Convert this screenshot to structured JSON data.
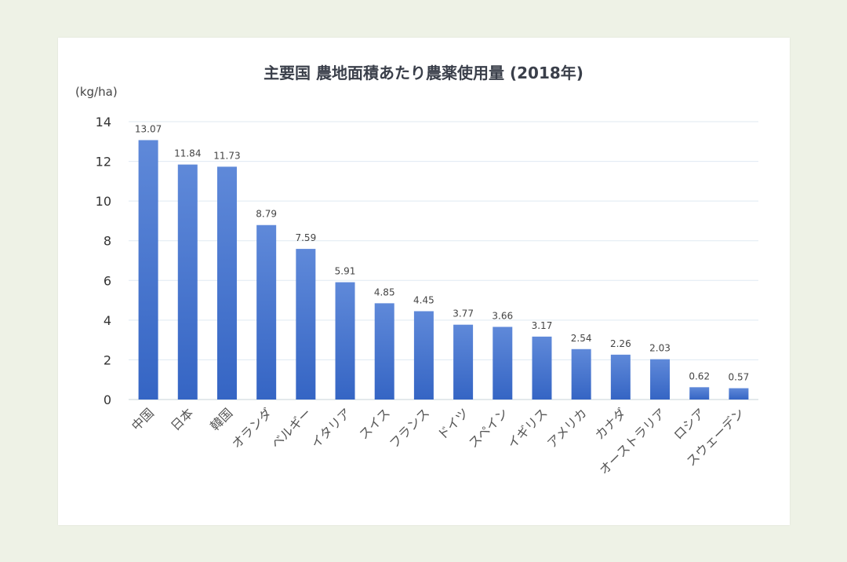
{
  "chart_data": {
    "type": "bar",
    "title": "主要国 農地面積あたり農薬使用量 (2018年)",
    "unit_label": "(kg/ha)",
    "categories": [
      "中国",
      "日本",
      "韓国",
      "オランダ",
      "ベルギー",
      "イタリア",
      "スイス",
      "フランス",
      "ドイツ",
      "スペイン",
      "イギリス",
      "アメリカ",
      "カナダ",
      "オーストラリア",
      "ロシア",
      "スウェーデン"
    ],
    "values": [
      13.07,
      11.84,
      11.73,
      8.79,
      7.59,
      5.91,
      4.85,
      4.45,
      3.77,
      3.66,
      3.17,
      2.54,
      2.26,
      2.03,
      0.62,
      0.57
    ],
    "value_labels": [
      "13.07",
      "11.84",
      "11.73",
      "8.79",
      "7.59",
      "5.91",
      "4.85",
      "4.45",
      "3.77",
      "3.66",
      "3.17",
      "2.54",
      "2.26",
      "2.03",
      "0.62",
      "0.57"
    ],
    "ylim": [
      0,
      14
    ],
    "yticks": [
      "0",
      "2",
      "4",
      "6",
      "8",
      "10",
      "12",
      "14"
    ],
    "grid": true,
    "bar_color_top": "#5f89d9",
    "bar_color_bottom": "#3565c4",
    "grid_color": "#dfeaf2"
  }
}
